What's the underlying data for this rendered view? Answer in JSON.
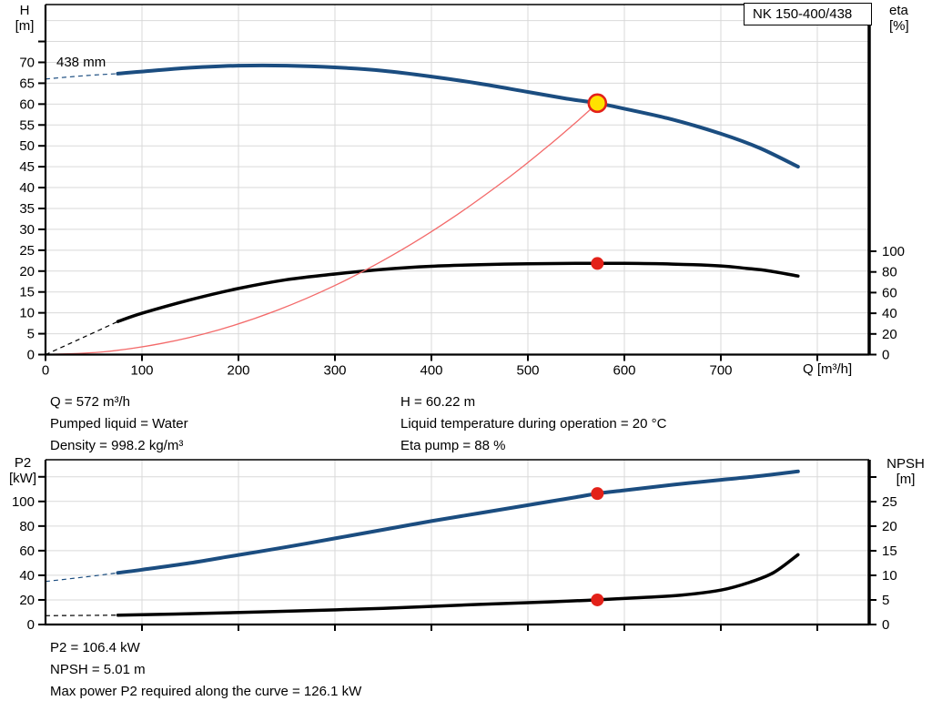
{
  "header": {
    "model": "NK 150-400/438"
  },
  "colors": {
    "curve_blue": "#1b4d80",
    "curve_black": "#000000",
    "system_red": "#f36a6a",
    "marker_red": "#e32119",
    "duty_yellow": "#ffe100",
    "grid": "#d9d9d9"
  },
  "chart_data": [
    {
      "type": "line",
      "name": "qh-efficiency-chart",
      "impeller_label": "438 mm",
      "x_axis": {
        "label": "Q [m³/h]",
        "min": 0,
        "max": 854,
        "gridlines": [
          100,
          200,
          300,
          400,
          500,
          600,
          700,
          800
        ],
        "ticks": [
          [
            0,
            "0"
          ],
          [
            100,
            "100"
          ],
          [
            200,
            "200"
          ],
          [
            300,
            "300"
          ],
          [
            400,
            "400"
          ],
          [
            500,
            "500"
          ],
          [
            600,
            "600"
          ],
          [
            700,
            "700"
          ],
          [
            800,
            null
          ]
        ]
      },
      "y_left": {
        "title": "H",
        "unit": "[m]",
        "min": 0,
        "max": 83,
        "gridlines": [
          5,
          10,
          15,
          20,
          25,
          30,
          35,
          40,
          45,
          50,
          55,
          60,
          65,
          70,
          75,
          80
        ],
        "ticks": [
          [
            0,
            "0"
          ],
          [
            5,
            "5"
          ],
          [
            10,
            "10"
          ],
          [
            15,
            "15"
          ],
          [
            20,
            "20"
          ],
          [
            25,
            "25"
          ],
          [
            30,
            "30"
          ],
          [
            35,
            "35"
          ],
          [
            40,
            "40"
          ],
          [
            45,
            "45"
          ],
          [
            50,
            "50"
          ],
          [
            55,
            "55"
          ],
          [
            60,
            "60"
          ],
          [
            65,
            "65"
          ],
          [
            70,
            "70"
          ],
          [
            75,
            null
          ]
        ]
      },
      "y_right": {
        "title": "eta",
        "unit": "[%]",
        "min": 0,
        "max": 100,
        "ticks": [
          [
            0,
            "0"
          ],
          [
            20,
            "20"
          ],
          [
            40,
            "40"
          ],
          [
            60,
            "60"
          ],
          [
            80,
            "80"
          ],
          [
            100,
            "100"
          ]
        ]
      },
      "series": [
        {
          "name": "head-curve-438mm",
          "axis": "left",
          "color": "#1b4d80",
          "width": 4,
          "dash_until": 75,
          "points": [
            [
              0,
              66.0
            ],
            [
              40,
              66.8
            ],
            [
              75,
              67.3
            ],
            [
              100,
              67.8
            ],
            [
              150,
              68.7
            ],
            [
              200,
              69.2
            ],
            [
              250,
              69.2
            ],
            [
              300,
              68.8
            ],
            [
              350,
              68.0
            ],
            [
              400,
              66.6
            ],
            [
              450,
              64.9
            ],
            [
              500,
              62.9
            ],
            [
              540,
              61.3
            ],
            [
              572,
              60.22
            ],
            [
              600,
              58.9
            ],
            [
              650,
              56.3
            ],
            [
              700,
              52.9
            ],
            [
              740,
              49.5
            ],
            [
              780,
              45.0
            ]
          ]
        },
        {
          "name": "efficiency-curve",
          "axis": "right",
          "color": "#000000",
          "width": 3.5,
          "dash_until": 75,
          "points": [
            [
              0,
              0
            ],
            [
              40,
              17
            ],
            [
              75,
              32
            ],
            [
              100,
              40
            ],
            [
              150,
              53
            ],
            [
              200,
              64
            ],
            [
              250,
              72.5
            ],
            [
              300,
              78
            ],
            [
              350,
              82.5
            ],
            [
              400,
              85.5
            ],
            [
              450,
              87
            ],
            [
              500,
              87.9
            ],
            [
              550,
              88.3
            ],
            [
              600,
              88.3
            ],
            [
              650,
              87.6
            ],
            [
              700,
              85.8
            ],
            [
              726,
              83.5
            ],
            [
              750,
              81
            ],
            [
              780,
              76
            ]
          ]
        },
        {
          "name": "system-curve",
          "axis": "left",
          "color": "#f36a6a",
          "width": 1.3,
          "points": [
            [
              0,
              0
            ],
            [
              60,
              0.66
            ],
            [
              120,
              2.65
            ],
            [
              180,
              5.96
            ],
            [
              240,
              10.6
            ],
            [
              300,
              16.56
            ],
            [
              360,
              23.85
            ],
            [
              420,
              32.46
            ],
            [
              480,
              42.4
            ],
            [
              520,
              49.76
            ],
            [
              550,
              55.66
            ],
            [
              572,
              60.22
            ]
          ]
        }
      ],
      "markers": [
        {
          "name": "duty-point-marker",
          "q": 572,
          "v": 60.22,
          "axis": "left",
          "style": "duty"
        },
        {
          "name": "efficiency-point-marker",
          "q": 572,
          "v": 88.2,
          "axis": "right",
          "style": "red"
        }
      ]
    },
    {
      "type": "line",
      "name": "p2-npsh-chart",
      "x_axis": {
        "label": null,
        "min": 0,
        "max": 854,
        "gridlines": [
          100,
          200,
          300,
          400,
          500,
          600,
          700,
          800
        ],
        "ticks": [
          [
            100,
            null
          ],
          [
            200,
            null
          ],
          [
            300,
            null
          ],
          [
            400,
            null
          ],
          [
            500,
            null
          ],
          [
            600,
            null
          ],
          [
            700,
            null
          ],
          [
            800,
            null
          ]
        ]
      },
      "y_left": {
        "title": "P2",
        "unit": "[kW]",
        "min": 0,
        "max": 134,
        "gridlines": [
          20,
          40,
          60,
          80,
          100,
          120
        ],
        "ticks": [
          [
            0,
            "0"
          ],
          [
            20,
            "20"
          ],
          [
            40,
            "40"
          ],
          [
            60,
            "60"
          ],
          [
            80,
            "80"
          ],
          [
            100,
            "100"
          ],
          [
            120,
            null
          ]
        ]
      },
      "y_right": {
        "title": "NPSH",
        "unit": "[m]",
        "min": 0,
        "max": 33.5,
        "ticks": [
          [
            0,
            "0"
          ],
          [
            5,
            "5"
          ],
          [
            10,
            "10"
          ],
          [
            15,
            "15"
          ],
          [
            20,
            "20"
          ],
          [
            25,
            "25"
          ],
          [
            30,
            null
          ]
        ]
      },
      "series": [
        {
          "name": "p2-curve",
          "axis": "left",
          "color": "#1b4d80",
          "width": 4,
          "dash_until": 75,
          "points": [
            [
              0,
              35
            ],
            [
              40,
              38.5
            ],
            [
              75,
              42
            ],
            [
              100,
              44.5
            ],
            [
              150,
              50
            ],
            [
              200,
              56.5
            ],
            [
              250,
              63
            ],
            [
              300,
              70
            ],
            [
              350,
              77
            ],
            [
              400,
              84
            ],
            [
              450,
              90.5
            ],
            [
              500,
              97
            ],
            [
              550,
              103.5
            ],
            [
              572,
              106.4
            ],
            [
              600,
              109
            ],
            [
              650,
              113.5
            ],
            [
              700,
              117.5
            ],
            [
              740,
              120.6
            ],
            [
              780,
              124.4
            ]
          ]
        },
        {
          "name": "npsh-curve",
          "axis": "right",
          "color": "#000000",
          "width": 3.5,
          "dash_until": 75,
          "points": [
            [
              0,
              1.8
            ],
            [
              40,
              1.85
            ],
            [
              75,
              1.9
            ],
            [
              150,
              2.2
            ],
            [
              250,
              2.7
            ],
            [
              350,
              3.3
            ],
            [
              450,
              4.1
            ],
            [
              520,
              4.6
            ],
            [
              572,
              5.01
            ],
            [
              620,
              5.5
            ],
            [
              660,
              6.0
            ],
            [
              700,
              7.0
            ],
            [
              730,
              8.6
            ],
            [
              755,
              10.6
            ],
            [
              780,
              14.2
            ]
          ]
        }
      ],
      "markers": [
        {
          "name": "p2-point-marker",
          "q": 572,
          "v": 106.4,
          "axis": "left",
          "style": "red"
        },
        {
          "name": "npsh-point-marker",
          "q": 572,
          "v": 5.01,
          "axis": "right",
          "style": "red"
        }
      ]
    }
  ],
  "info_top": {
    "left": [
      "Q = 572 m³/h",
      "Pumped liquid = Water",
      "Density = 998.2 kg/m³"
    ],
    "right": [
      "H = 60.22 m",
      "Liquid temperature during operation = 20 °C",
      "Eta pump = 88 %"
    ]
  },
  "info_bottom": [
    "P2 = 106.4 kW",
    "NPSH = 5.01 m",
    "Max power P2 required along the curve = 126.1 kW"
  ]
}
